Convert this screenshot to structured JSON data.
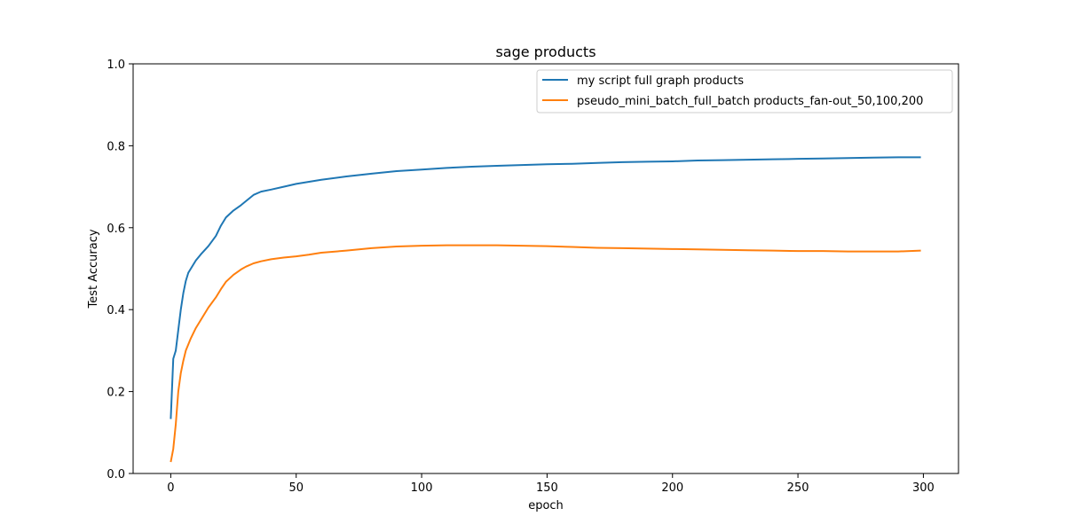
{
  "chart_data": {
    "type": "line",
    "title": "sage products",
    "xlabel": "epoch",
    "ylabel": "Test Accuracy",
    "xlim": [
      -15,
      314
    ],
    "ylim": [
      0.0,
      1.0
    ],
    "xticks": [
      0,
      50,
      100,
      150,
      200,
      250,
      300
    ],
    "yticks": [
      0.0,
      0.2,
      0.4,
      0.6,
      0.8,
      1.0
    ],
    "xtick_labels": [
      "0",
      "50",
      "100",
      "150",
      "200",
      "250",
      "300"
    ],
    "ytick_labels": [
      "0.0",
      "0.2",
      "0.4",
      "0.6",
      "0.8",
      "1.0"
    ],
    "grid": false,
    "legend_position": "top-right",
    "series": [
      {
        "name": "my script full graph products",
        "color": "#1f77b4",
        "points": [
          [
            0,
            0.133
          ],
          [
            1,
            0.28
          ],
          [
            2,
            0.3
          ],
          [
            3,
            0.35
          ],
          [
            4,
            0.4
          ],
          [
            5,
            0.44
          ],
          [
            6,
            0.47
          ],
          [
            7,
            0.49
          ],
          [
            8,
            0.5
          ],
          [
            10,
            0.52
          ],
          [
            12,
            0.535
          ],
          [
            15,
            0.555
          ],
          [
            18,
            0.58
          ],
          [
            20,
            0.605
          ],
          [
            22,
            0.625
          ],
          [
            25,
            0.642
          ],
          [
            28,
            0.655
          ],
          [
            30,
            0.665
          ],
          [
            33,
            0.68
          ],
          [
            36,
            0.688
          ],
          [
            40,
            0.693
          ],
          [
            45,
            0.7
          ],
          [
            50,
            0.707
          ],
          [
            60,
            0.717
          ],
          [
            70,
            0.725
          ],
          [
            80,
            0.732
          ],
          [
            90,
            0.738
          ],
          [
            100,
            0.742
          ],
          [
            110,
            0.746
          ],
          [
            120,
            0.749
          ],
          [
            130,
            0.751
          ],
          [
            140,
            0.753
          ],
          [
            150,
            0.755
          ],
          [
            160,
            0.756
          ],
          [
            170,
            0.758
          ],
          [
            180,
            0.76
          ],
          [
            190,
            0.761
          ],
          [
            200,
            0.762
          ],
          [
            210,
            0.764
          ],
          [
            220,
            0.765
          ],
          [
            230,
            0.766
          ],
          [
            240,
            0.767
          ],
          [
            250,
            0.768
          ],
          [
            260,
            0.769
          ],
          [
            270,
            0.77
          ],
          [
            280,
            0.771
          ],
          [
            290,
            0.772
          ],
          [
            299,
            0.772
          ]
        ]
      },
      {
        "name": "pseudo_mini_batch_full_batch products_fan-out_50,100,200",
        "color": "#ff7f0e",
        "points": [
          [
            0,
            0.028
          ],
          [
            1,
            0.06
          ],
          [
            2,
            0.12
          ],
          [
            3,
            0.2
          ],
          [
            4,
            0.245
          ],
          [
            5,
            0.275
          ],
          [
            6,
            0.3
          ],
          [
            8,
            0.33
          ],
          [
            10,
            0.355
          ],
          [
            12,
            0.375
          ],
          [
            15,
            0.405
          ],
          [
            18,
            0.43
          ],
          [
            20,
            0.45
          ],
          [
            22,
            0.468
          ],
          [
            25,
            0.485
          ],
          [
            28,
            0.498
          ],
          [
            30,
            0.505
          ],
          [
            33,
            0.513
          ],
          [
            36,
            0.518
          ],
          [
            40,
            0.523
          ],
          [
            45,
            0.527
          ],
          [
            50,
            0.53
          ],
          [
            55,
            0.534
          ],
          [
            60,
            0.539
          ],
          [
            70,
            0.544
          ],
          [
            80,
            0.55
          ],
          [
            90,
            0.554
          ],
          [
            100,
            0.556
          ],
          [
            110,
            0.557
          ],
          [
            120,
            0.557
          ],
          [
            130,
            0.557
          ],
          [
            140,
            0.556
          ],
          [
            150,
            0.555
          ],
          [
            160,
            0.553
          ],
          [
            170,
            0.551
          ],
          [
            180,
            0.55
          ],
          [
            190,
            0.549
          ],
          [
            200,
            0.548
          ],
          [
            210,
            0.547
          ],
          [
            220,
            0.546
          ],
          [
            230,
            0.545
          ],
          [
            240,
            0.544
          ],
          [
            250,
            0.543
          ],
          [
            260,
            0.543
          ],
          [
            270,
            0.542
          ],
          [
            280,
            0.542
          ],
          [
            290,
            0.542
          ],
          [
            299,
            0.544
          ]
        ]
      }
    ]
  }
}
